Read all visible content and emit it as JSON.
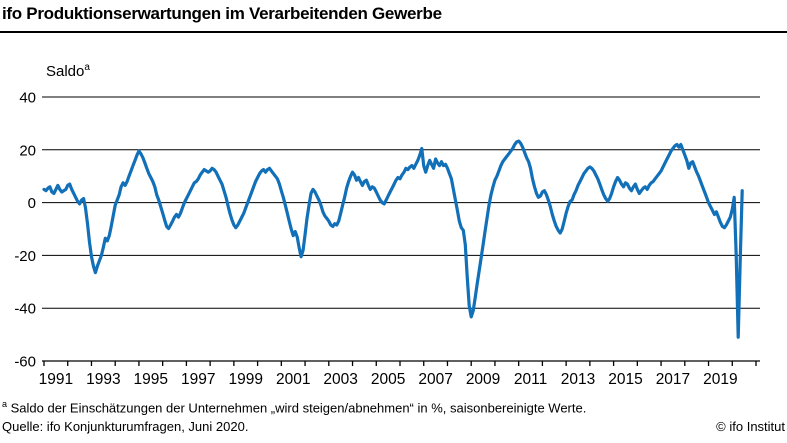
{
  "header": {
    "title": "ifo Produktionserwartungen im Verarbeitenden Gewerbe"
  },
  "chart": {
    "y_axis_title": "Saldo",
    "y_axis_title_marker": "a"
  },
  "chart_data": {
    "type": "line",
    "title": "ifo Produktionserwartungen im Verarbeitenden Gewerbe",
    "ylabel": "Saldo (a)",
    "xlabel": "",
    "ylim": [
      -60,
      40
    ],
    "xlim": [
      1991,
      2021
    ],
    "grid": "horizontal",
    "legend_position": "none",
    "y_tick_values": [
      40,
      20,
      0,
      -20,
      -40,
      -60
    ],
    "y_tick_labels": [
      "40",
      "20",
      "0",
      "-20",
      "-40",
      "-60"
    ],
    "x_tick_years": [
      1991,
      1993,
      1995,
      1997,
      1999,
      2001,
      2003,
      2005,
      2007,
      2009,
      2011,
      2013,
      2015,
      2017,
      2019
    ],
    "x_tick_labels": [
      "1991",
      "1993",
      "1995",
      "1997",
      "1999",
      "2001",
      "2003",
      "2005",
      "2007",
      "2009",
      "2011",
      "2013",
      "2015",
      "2017",
      "2019"
    ],
    "line_color": "#1270b8",
    "series": [
      {
        "name": "Saldo",
        "color": "#1270b8",
        "x_start": 1991.0,
        "x_step_months": 1,
        "values": [
          5,
          4.5,
          5.5,
          6,
          4,
          3.5,
          5,
          6.5,
          5,
          4,
          4.5,
          5,
          6.5,
          7,
          5,
          3.5,
          2,
          0.5,
          -0.5,
          1,
          1.5,
          -2,
          -8,
          -15,
          -20.5,
          -24,
          -26.5,
          -24,
          -22,
          -20,
          -17,
          -13.5,
          -14.5,
          -12.5,
          -9,
          -5,
          -1,
          1,
          3,
          6,
          7.5,
          6.5,
          8,
          10,
          12,
          14,
          16,
          18,
          19.5,
          18.5,
          17,
          15,
          13,
          11,
          9.5,
          8,
          6,
          3,
          1,
          -1.5,
          -4,
          -6.5,
          -9,
          -9.8,
          -8.5,
          -7,
          -5.5,
          -4.5,
          -5.5,
          -4,
          -2,
          0,
          1.5,
          3,
          4.5,
          6,
          7.5,
          8,
          9,
          10.5,
          11.5,
          12.5,
          12,
          11.5,
          12,
          13,
          12.5,
          11.5,
          10,
          8.5,
          7,
          4.5,
          2,
          -1,
          -4,
          -6.5,
          -8.5,
          -9.5,
          -8.5,
          -7,
          -5.5,
          -4,
          -2,
          0,
          2,
          4,
          6,
          8,
          9.5,
          11,
          12,
          12.5,
          11.5,
          12.5,
          13,
          12,
          11,
          10,
          9,
          7,
          4.5,
          2,
          -1,
          -4,
          -7,
          -10,
          -12.5,
          -11,
          -13,
          -17,
          -20.5,
          -18,
          -12,
          -6,
          -1,
          3.5,
          5,
          4,
          2.5,
          1,
          -1,
          -3.5,
          -5,
          -6,
          -7,
          -8.5,
          -9,
          -8,
          -8.5,
          -7,
          -4,
          -1,
          2,
          5.5,
          8,
          10,
          11.5,
          10.5,
          8.5,
          9.5,
          8,
          6.5,
          8,
          8.5,
          6.5,
          5,
          6,
          5.5,
          4,
          2.5,
          1,
          0,
          -0.5,
          1,
          2.5,
          4,
          5.5,
          7,
          8.5,
          9.5,
          9,
          10.5,
          11.5,
          13,
          12.5,
          13.5,
          14,
          13,
          14.5,
          16,
          18,
          20.5,
          14,
          11.5,
          14,
          16,
          14.5,
          13,
          16.5,
          15,
          14,
          15.5,
          14,
          14.5,
          13,
          11,
          9,
          5,
          1,
          -3,
          -7,
          -9.5,
          -10.5,
          -16,
          -28,
          -39,
          -43.3,
          -41,
          -36,
          -31,
          -26,
          -21,
          -16,
          -11,
          -6,
          -1,
          3,
          6,
          8.5,
          10,
          12,
          14,
          15.5,
          16.5,
          17.5,
          18.5,
          19.5,
          20.5,
          22,
          23,
          23.3,
          22.5,
          21,
          19,
          17,
          15.5,
          13,
          9,
          6,
          3.5,
          2,
          2.5,
          4,
          4.5,
          3,
          1,
          -1.5,
          -4.5,
          -7,
          -9,
          -10.5,
          -11.5,
          -10,
          -7,
          -4,
          -1.5,
          0.5,
          1,
          3,
          4.5,
          6.5,
          8,
          9.5,
          11,
          12,
          13,
          13.5,
          13,
          12,
          10.5,
          9,
          7,
          5,
          3,
          1.5,
          0.5,
          1.5,
          3.5,
          6,
          8,
          9.5,
          8.5,
          7,
          6,
          7.5,
          7,
          5.5,
          4.5,
          6,
          7,
          5,
          3.5,
          4.5,
          5.5,
          6,
          5,
          6.5,
          7.5,
          8,
          9,
          10,
          11,
          12,
          13.5,
          15,
          16.5,
          18,
          19.5,
          20.5,
          21.5,
          22,
          21,
          22,
          20,
          18,
          16,
          13,
          15,
          15.5,
          13.5,
          11.5,
          10,
          8,
          6,
          4,
          2,
          0,
          -1.5,
          -3,
          -4.5,
          -3.5,
          -5.5,
          -7.5,
          -9,
          -9.5,
          -8.5,
          -7,
          -5.5,
          -2.5,
          2,
          -20,
          -51,
          -22,
          4.5
        ]
      }
    ]
  },
  "footnote": {
    "marker": "a",
    "text": "Saldo der Einschätzungen der Unternehmen „wird steigen/abnehmen“ in %, saisonbereinigte Werte."
  },
  "source": {
    "text": "Quelle: ifo Konjunkturumfragen, Juni 2020."
  },
  "copyright": {
    "text": "© ifo Institut"
  }
}
